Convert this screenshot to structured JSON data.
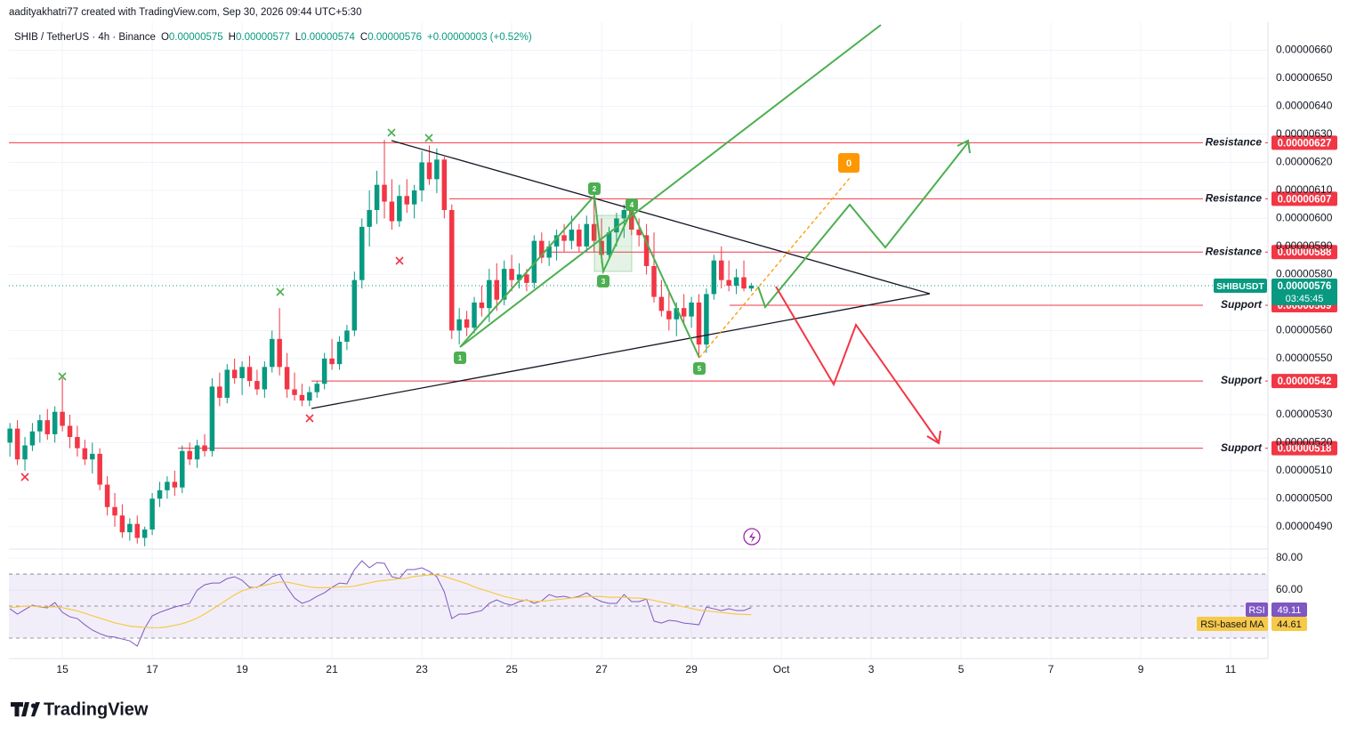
{
  "header": {
    "credit": "aadityakhatri77 created with TradingView.com, Sep 30, 2026 09:44 UTC+5:30",
    "symbol": "SHIB / TetherUS · 4h · Binance",
    "ohlc": [
      {
        "key": "O",
        "value": "0.00000575"
      },
      {
        "key": "H",
        "value": "0.00000577"
      },
      {
        "key": "L",
        "value": "0.00000574"
      },
      {
        "key": "C",
        "value": "0.00000576"
      }
    ],
    "change": "+0.00000003 (+0.52%)"
  },
  "footer": {
    "logo": "TradingView"
  },
  "chart_data": [
    {
      "type": "candlestick",
      "x": [
        13.833,
        14,
        14.167,
        14.333,
        14.5,
        14.667,
        14.833,
        15,
        15.167,
        15.333,
        15.5,
        15.667,
        15.833,
        16,
        16.167,
        16.333,
        16.5,
        16.667,
        16.833,
        17,
        17.167,
        17.333,
        17.5,
        17.667,
        17.833,
        18,
        18.167,
        18.333,
        18.5,
        18.667,
        18.833,
        19,
        19.167,
        19.333,
        19.5,
        19.667,
        19.833,
        20,
        20.167,
        20.333,
        20.5,
        20.667,
        20.833,
        21,
        21.167,
        21.333,
        21.5,
        21.667,
        21.833,
        22,
        22.167,
        22.333,
        22.5,
        22.667,
        22.833,
        23,
        23.167,
        23.333,
        23.5,
        23.667,
        23.833,
        24,
        24.167,
        24.333,
        24.5,
        24.667,
        24.833,
        25,
        25.167,
        25.333,
        25.5,
        25.667,
        25.833,
        26,
        26.167,
        26.333,
        26.5,
        26.667,
        26.833,
        27,
        27.167,
        27.333,
        27.5,
        27.667,
        27.833,
        28,
        28.167,
        28.333,
        28.5,
        28.667,
        28.833,
        29,
        29.167,
        29.333,
        29.5,
        29.667,
        29.833,
        30,
        30.167,
        30.333
      ],
      "open": [
        5.2e-06,
        5.25e-06,
        5.14e-06,
        5.19e-06,
        5.24e-06,
        5.28e-06,
        5.23e-06,
        5.31e-06,
        5.26e-06,
        5.22e-06,
        5.18e-06,
        5.14e-06,
        5.16e-06,
        5.05e-06,
        4.97e-06,
        4.94e-06,
        4.88e-06,
        4.91e-06,
        4.86e-06,
        4.89e-06,
        5e-06,
        5.03e-06,
        5.06e-06,
        5.04e-06,
        5.17e-06,
        5.14e-06,
        5.19e-06,
        5.17e-06,
        5.4e-06,
        5.36e-06,
        5.46e-06,
        5.43e-06,
        5.47e-06,
        5.42e-06,
        5.39e-06,
        5.47e-06,
        5.57e-06,
        5.47e-06,
        5.39e-06,
        5.37e-06,
        5.35e-06,
        5.38e-06,
        5.41e-06,
        5.5e-06,
        5.48e-06,
        5.56e-06,
        5.6e-06,
        5.78e-06,
        5.97e-06,
        6.03e-06,
        6.12e-06,
        6.06e-06,
        5.99e-06,
        6.08e-06,
        6.05e-06,
        6.1e-06,
        6.2e-06,
        6.14e-06,
        6.21e-06,
        6.03e-06,
        5.6e-06,
        5.64e-06,
        5.61e-06,
        5.7e-06,
        5.68e-06,
        5.78e-06,
        5.71e-06,
        5.82e-06,
        5.78e-06,
        5.8e-06,
        5.77e-06,
        5.92e-06,
        5.86e-06,
        5.9e-06,
        5.94e-06,
        5.92e-06,
        5.96e-06,
        5.9e-06,
        5.98e-06,
        5.92e-06,
        5.87e-06,
        5.95e-06,
        6e-06,
        6.03e-06,
        5.96e-06,
        5.94e-06,
        5.83e-06,
        5.72e-06,
        5.67e-06,
        5.64e-06,
        5.68e-06,
        5.65e-06,
        5.7e-06,
        5.55e-06,
        5.73e-06,
        5.85e-06,
        5.78e-06,
        5.76e-06,
        5.79e-06,
        5.75e-06
      ],
      "high": [
        5.27e-06,
        5.28e-06,
        5.22e-06,
        5.27e-06,
        5.3e-06,
        5.32e-06,
        5.33e-06,
        5.43e-06,
        5.3e-06,
        5.26e-06,
        5.21e-06,
        5.2e-06,
        5.18e-06,
        5.08e-06,
        5.02e-06,
        4.98e-06,
        4.93e-06,
        4.94e-06,
        4.9e-06,
        5.02e-06,
        5.06e-06,
        5.08e-06,
        5.1e-06,
        5.19e-06,
        5.2e-06,
        5.21e-06,
        5.23e-06,
        5.43e-06,
        5.45e-06,
        5.48e-06,
        5.5e-06,
        5.49e-06,
        5.51e-06,
        5.46e-06,
        5.49e-06,
        5.6e-06,
        5.68e-06,
        5.52e-06,
        5.45e-06,
        5.41e-06,
        5.4e-06,
        5.42e-06,
        5.52e-06,
        5.57e-06,
        5.58e-06,
        5.62e-06,
        5.81e-06,
        6e-06,
        6.1e-06,
        6.17e-06,
        6.28e-06,
        6.14e-06,
        6.12e-06,
        6.14e-06,
        6.12e-06,
        6.24e-06,
        6.26e-06,
        6.25e-06,
        6.22e-06,
        6.05e-06,
        5.68e-06,
        5.67e-06,
        5.72e-06,
        5.76e-06,
        5.82e-06,
        5.84e-06,
        5.85e-06,
        5.87e-06,
        5.84e-06,
        5.82e-06,
        5.94e-06,
        5.95e-06,
        5.92e-06,
        5.96e-06,
        5.98e-06,
        6.01e-06,
        5.98e-06,
        6.01e-06,
        6.08e-06,
        6e-06,
        5.97e-06,
        6.02e-06,
        6.05e-06,
        6.06e-06,
        6e-06,
        5.98e-06,
        5.95e-06,
        5.78e-06,
        5.74e-06,
        5.7e-06,
        5.73e-06,
        5.72e-06,
        5.73e-06,
        5.75e-06,
        5.87e-06,
        5.9e-06,
        5.85e-06,
        5.82e-06,
        5.85e-06,
        5.77e-06
      ],
      "low": [
        5.15e-06,
        5.12e-06,
        5.1e-06,
        5.17e-06,
        5.2e-06,
        5.21e-06,
        5.2e-06,
        5.24e-06,
        5.18e-06,
        5.15e-06,
        5.12e-06,
        5.09e-06,
        5.03e-06,
        4.94e-06,
        4.9e-06,
        4.86e-06,
        4.85e-06,
        4.84e-06,
        4.83e-06,
        4.87e-06,
        4.97e-06,
        5e-06,
        5.01e-06,
        5.02e-06,
        5.12e-06,
        5.11e-06,
        5.15e-06,
        5.15e-06,
        5.33e-06,
        5.34e-06,
        5.41e-06,
        5.37e-06,
        5.4e-06,
        5.37e-06,
        5.36e-06,
        5.45e-06,
        5.44e-06,
        5.36e-06,
        5.35e-06,
        5.33e-06,
        5.33e-06,
        5.36e-06,
        5.39e-06,
        5.46e-06,
        5.46e-06,
        5.53e-06,
        5.58e-06,
        5.75e-06,
        5.9e-06,
        5.98e-06,
        6e-06,
        5.96e-06,
        5.97e-06,
        6.02e-06,
        6e-06,
        6.06e-06,
        6.12e-06,
        6.09e-06,
        6e-06,
        5.57e-06,
        5.55e-06,
        5.58e-06,
        5.59e-06,
        5.65e-06,
        5.63e-06,
        5.67e-06,
        5.69e-06,
        5.74e-06,
        5.75e-06,
        5.74e-06,
        5.75e-06,
        5.84e-06,
        5.83e-06,
        5.85e-06,
        5.88e-06,
        5.89e-06,
        5.88e-06,
        5.88e-06,
        5.88e-06,
        5.84e-06,
        5.85e-06,
        5.9e-06,
        5.93e-06,
        5.94e-06,
        5.9e-06,
        5.8e-06,
        5.7e-06,
        5.65e-06,
        5.6e-06,
        5.58e-06,
        5.62e-06,
        5.61e-06,
        5.51e-06,
        5.52e-06,
        5.71e-06,
        5.75e-06,
        5.74e-06,
        5.73e-06,
        5.74e-06,
        5.74e-06
      ],
      "close": [
        5.25e-06,
        5.14e-06,
        5.19e-06,
        5.24e-06,
        5.28e-06,
        5.23e-06,
        5.31e-06,
        5.26e-06,
        5.22e-06,
        5.18e-06,
        5.14e-06,
        5.16e-06,
        5.05e-06,
        4.97e-06,
        4.94e-06,
        4.88e-06,
        4.91e-06,
        4.86e-06,
        4.89e-06,
        5e-06,
        5.03e-06,
        5.06e-06,
        5.04e-06,
        5.17e-06,
        5.14e-06,
        5.19e-06,
        5.17e-06,
        5.4e-06,
        5.36e-06,
        5.46e-06,
        5.43e-06,
        5.47e-06,
        5.42e-06,
        5.39e-06,
        5.47e-06,
        5.57e-06,
        5.47e-06,
        5.39e-06,
        5.37e-06,
        5.35e-06,
        5.38e-06,
        5.41e-06,
        5.5e-06,
        5.48e-06,
        5.56e-06,
        5.6e-06,
        5.78e-06,
        5.97e-06,
        6.03e-06,
        6.12e-06,
        6.06e-06,
        5.99e-06,
        6.08e-06,
        6.05e-06,
        6.1e-06,
        6.2e-06,
        6.14e-06,
        6.21e-06,
        6.03e-06,
        5.6e-06,
        5.64e-06,
        5.61e-06,
        5.7e-06,
        5.68e-06,
        5.78e-06,
        5.71e-06,
        5.82e-06,
        5.78e-06,
        5.8e-06,
        5.77e-06,
        5.92e-06,
        5.86e-06,
        5.9e-06,
        5.94e-06,
        5.92e-06,
        5.96e-06,
        5.9e-06,
        5.98e-06,
        5.92e-06,
        5.87e-06,
        5.95e-06,
        6e-06,
        6.03e-06,
        5.96e-06,
        5.94e-06,
        5.83e-06,
        5.72e-06,
        5.67e-06,
        5.64e-06,
        5.68e-06,
        5.65e-06,
        5.7e-06,
        5.55e-06,
        5.73e-06,
        5.85e-06,
        5.78e-06,
        5.76e-06,
        5.79e-06,
        5.75e-06,
        5.76e-06
      ],
      "up_color": "#089981",
      "down_color": "#f23645",
      "xlim": [
        13.81,
        41.83
      ],
      "xticks": [
        15,
        17,
        19,
        21,
        23,
        25,
        27,
        29,
        {
          "value": 31,
          "label": "Oct"
        },
        {
          "value": 33,
          "label": "3"
        },
        {
          "value": 35,
          "label": "5"
        },
        {
          "value": 37,
          "label": "7"
        },
        {
          "value": 39,
          "label": "9"
        },
        {
          "value": 41,
          "label": "11"
        }
      ],
      "ylim": [
        4.82e-06,
        6.7e-06
      ],
      "yticks": [
        {
          "value": 6.6e-06,
          "label": "0.00000660"
        },
        {
          "value": 6.5e-06,
          "label": "0.00000650"
        },
        {
          "value": 6.4e-06,
          "label": "0.00000640"
        },
        {
          "value": 6.3e-06,
          "label": "0.00000630"
        },
        {
          "value": 6.2e-06,
          "label": "0.00000620"
        },
        {
          "value": 6.1e-06,
          "label": "0.00000610"
        },
        {
          "value": 6e-06,
          "label": "0.00000600"
        },
        {
          "value": 5.9e-06,
          "label": "0.00000590"
        },
        {
          "value": 5.8e-06,
          "label": "0.00000580"
        },
        {
          "value": 5.6e-06,
          "label": "0.00000560"
        },
        {
          "value": 5.5e-06,
          "label": "0.00000550"
        },
        {
          "value": 5.3e-06,
          "label": "0.00000530"
        },
        {
          "value": 5.2e-06,
          "label": "0.00000520"
        },
        {
          "value": 5.1e-06,
          "label": "0.00000510"
        },
        {
          "value": 5e-06,
          "label": "0.00000500"
        },
        {
          "value": 4.9e-06,
          "label": "0.00000490"
        }
      ],
      "grid": true,
      "levels": {
        "names": [
          "Resistance",
          "Resistance",
          "Resistance",
          "Support",
          "Support",
          "Support"
        ],
        "values": [
          6.27e-06,
          6.07e-06,
          5.88e-06,
          5.69e-06,
          5.42e-06,
          5.18e-06
        ],
        "value_labels": [
          "0.00000627",
          "0.00000607",
          "0.00000588",
          "0.00000569",
          "0.00000542",
          "0.00000518"
        ],
        "color": "#f23645"
      },
      "current_price": {
        "symbol": "SHIBUSDT",
        "value": 5.76e-06,
        "value_label": "0.00000576",
        "countdown": "03:45:45",
        "color": "#089981"
      },
      "annotations": {
        "waves": [
          "1",
          "2",
          "3",
          "4",
          "5"
        ],
        "target": "0"
      }
    },
    {
      "type": "line",
      "series": [
        {
          "name": "RSI",
          "color": "#7e57c2",
          "values": [
            48.3,
            45,
            47.8,
            50.6,
            49.4,
            48.9,
            52.2,
            46.1,
            43.3,
            42.2,
            38.3,
            35,
            32.8,
            31.1,
            30.6,
            29.4,
            28.3,
            25,
            36.1,
            43.9,
            46.1,
            47.8,
            49.4,
            50.6,
            51.7,
            60,
            63.3,
            64.4,
            64.4,
            67.2,
            68.3,
            66.1,
            61.7,
            61.7,
            64.4,
            68.3,
            70,
            61.7,
            55,
            51.7,
            53.3,
            56.1,
            58.3,
            61.7,
            64.4,
            63.9,
            72.8,
            78.3,
            73.9,
            77.2,
            76.7,
            68.3,
            67.2,
            72.8,
            72.8,
            73.9,
            71.7,
            68.3,
            58.9,
            42.2,
            45,
            45,
            46.1,
            47.2,
            51.7,
            53.9,
            51.7,
            50.6,
            52.8,
            53.9,
            51.7,
            53.3,
            57.2,
            55.6,
            56.1,
            55,
            56.1,
            58.3,
            55,
            52.8,
            51.7,
            51.7,
            57.2,
            52.8,
            52.8,
            54.4,
            40.6,
            39.4,
            41.1,
            40.6,
            39.4,
            38.9,
            38.3,
            49.4,
            48.3,
            47.2,
            48.3,
            47.2,
            47.2,
            49.11
          ]
        },
        {
          "name": "RSI-based MA",
          "color": "#f7c948",
          "values": [
            49,
            49.5,
            50,
            50,
            49.5,
            49.5,
            49.5,
            49,
            48,
            47,
            45.5,
            44,
            42.5,
            41,
            39.5,
            38.5,
            37.5,
            37,
            36.7,
            36.5,
            36.5,
            37,
            38,
            39,
            40.5,
            42.5,
            45,
            48,
            51,
            54,
            57,
            59.5,
            61,
            62,
            63,
            64,
            65,
            65,
            64,
            63,
            62,
            61.5,
            61.5,
            61.5,
            62,
            62,
            62.5,
            63.5,
            64.5,
            65.5,
            66,
            66.5,
            67,
            67.5,
            68.5,
            69,
            69.5,
            69.5,
            68.5,
            67,
            65.5,
            64,
            62,
            60.5,
            59,
            57.5,
            56,
            55,
            54,
            53.5,
            53,
            53,
            53.5,
            54,
            54.5,
            55,
            55.5,
            56,
            56,
            56,
            55.5,
            55.5,
            55.5,
            55,
            55,
            54.5,
            53.5,
            52.5,
            51.5,
            50.5,
            49.5,
            48.5,
            47.5,
            47,
            46.5,
            46,
            45.5,
            45,
            44.8,
            44.61
          ]
        }
      ],
      "ylim": [
        17.2,
        85.6
      ],
      "yticks": [
        {
          "value": 80,
          "label": "80.00"
        },
        {
          "value": 60,
          "label": "60.00"
        }
      ],
      "levels": [
        70,
        50,
        30
      ]
    }
  ]
}
